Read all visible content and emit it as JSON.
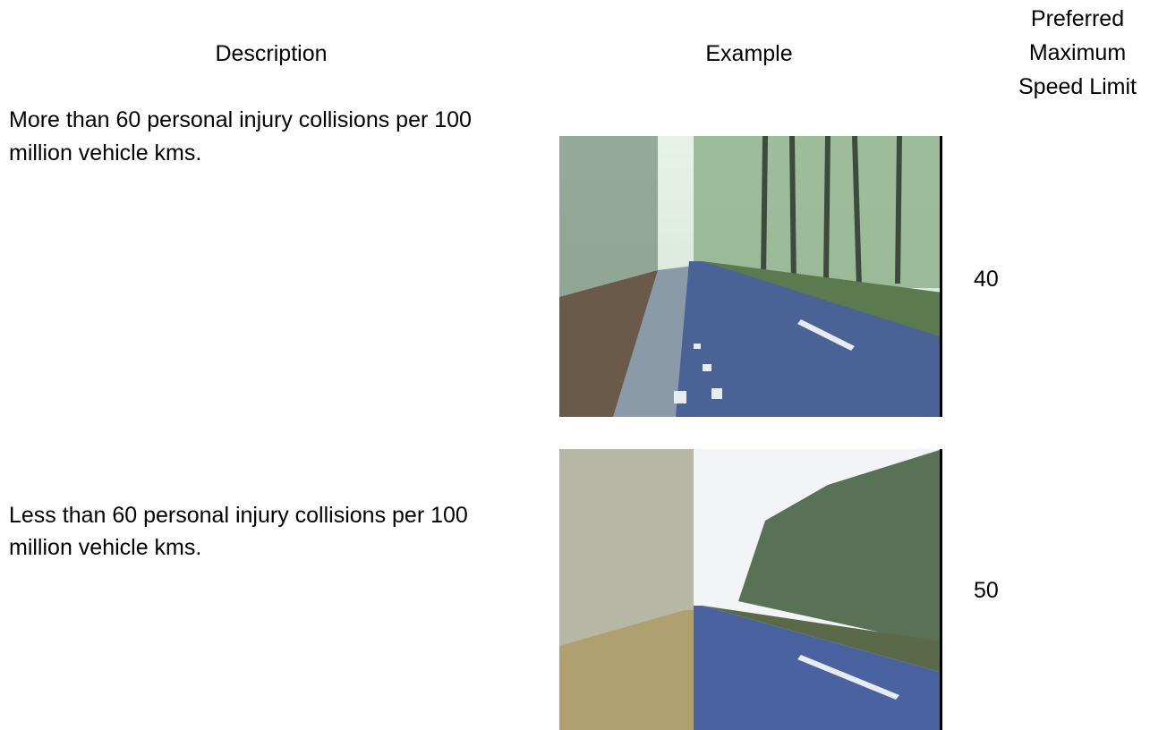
{
  "table": {
    "headers": [
      "Description",
      "Example",
      "Preferred Maximum Speed Limit"
    ],
    "rows": [
      {
        "description": "More than 60 personal injury collisions per 100 million vehicle kms.",
        "speed": "40"
      },
      {
        "description": "Less than 60 personal injury collisions per 100 million vehicle kms.",
        "speed": "50"
      }
    ]
  }
}
